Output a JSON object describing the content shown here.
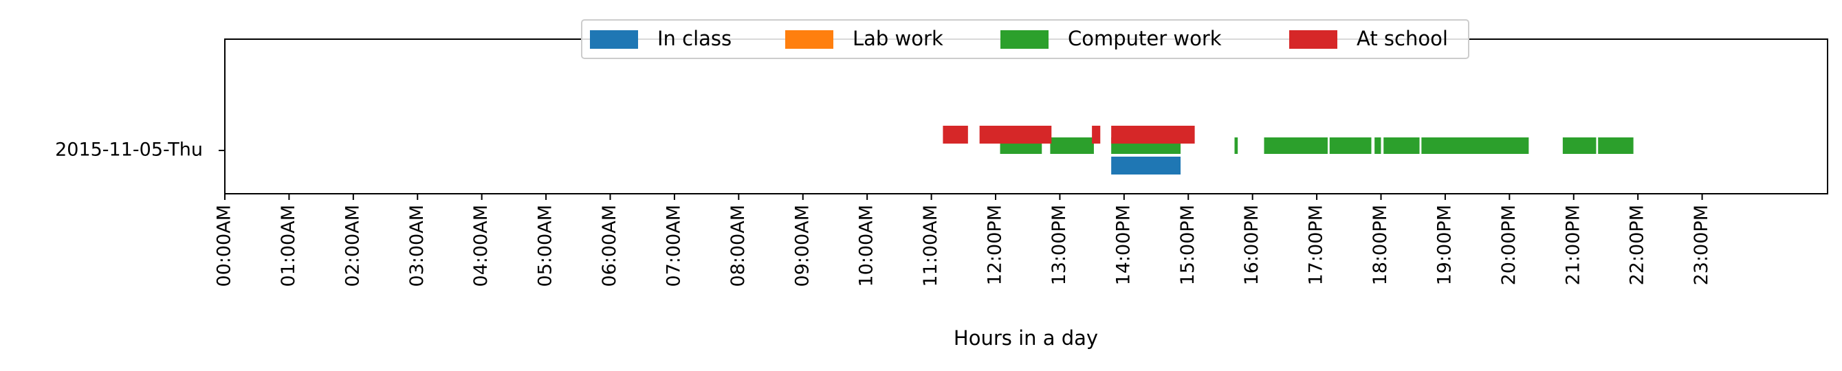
{
  "chart_data": {
    "type": "timeline",
    "xlabel": "Hours in a day",
    "xlim": [
      0,
      24
    ],
    "row_label": "2015-11-05-Thu",
    "x_ticks": [
      "00:00AM",
      "01:00AM",
      "02:00AM",
      "03:00AM",
      "04:00AM",
      "05:00AM",
      "06:00AM",
      "07:00AM",
      "08:00AM",
      "09:00AM",
      "10:00AM",
      "11:00AM",
      "12:00PM",
      "13:00PM",
      "14:00PM",
      "15:00PM",
      "16:00PM",
      "17:00PM",
      "18:00PM",
      "19:00PM",
      "20:00PM",
      "21:00PM",
      "22:00PM",
      "23:00PM"
    ],
    "legend_position": "top-center",
    "series": [
      {
        "name": "In class",
        "color": "#1f77b4",
        "lane": 0,
        "intervals": [
          [
            13.8,
            14.88
          ]
        ]
      },
      {
        "name": "Lab work",
        "color": "#ff7f0e",
        "lane": 1,
        "intervals": []
      },
      {
        "name": "Computer work",
        "color": "#2ca02c",
        "lane": 2,
        "intervals": [
          [
            12.07,
            12.72
          ],
          [
            12.85,
            13.53
          ],
          [
            13.8,
            14.88
          ],
          [
            15.72,
            15.77
          ],
          [
            16.18,
            17.17
          ],
          [
            17.2,
            17.85
          ],
          [
            17.9,
            18.0
          ],
          [
            18.04,
            18.6
          ],
          [
            18.63,
            20.3
          ],
          [
            20.83,
            21.35
          ],
          [
            21.38,
            21.93
          ]
        ]
      },
      {
        "name": "At school",
        "color": "#d62728",
        "lane": 3,
        "intervals": [
          [
            11.18,
            11.57
          ],
          [
            11.75,
            12.87
          ],
          [
            13.5,
            13.63
          ],
          [
            13.8,
            15.1
          ]
        ]
      }
    ]
  }
}
